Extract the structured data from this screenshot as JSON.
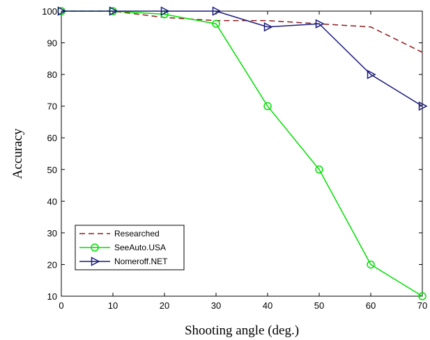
{
  "chart_data": {
    "type": "line",
    "xlabel": "Shooting angle (deg.)",
    "ylabel": "Accuracy",
    "xlim": [
      0,
      70
    ],
    "ylim": [
      10,
      100
    ],
    "x_ticks": [
      0,
      10,
      20,
      30,
      40,
      50,
      60,
      70
    ],
    "y_ticks": [
      10,
      20,
      30,
      40,
      50,
      60,
      70,
      80,
      90,
      100
    ],
    "grid": false,
    "legend_position": "bottom-left",
    "series": [
      {
        "name": "Researched",
        "color": "#8b1a1a",
        "line_style": "dashed",
        "marker": "none",
        "x": [
          0,
          10,
          20,
          30,
          40,
          50,
          60,
          70
        ],
        "y": [
          100,
          100,
          98,
          97,
          97,
          96,
          95,
          87
        ]
      },
      {
        "name": "SeeAuto.USA",
        "color": "#00e000",
        "line_style": "solid",
        "marker": "circle",
        "x": [
          0,
          10,
          20,
          30,
          40,
          50,
          60,
          70
        ],
        "y": [
          100,
          100,
          99,
          96,
          70,
          50,
          20,
          10
        ]
      },
      {
        "name": "Nomeroff.NET",
        "color": "#1a1a7a",
        "line_style": "solid",
        "marker": "triangle-right",
        "x": [
          0,
          10,
          20,
          30,
          40,
          50,
          60,
          70
        ],
        "y": [
          100,
          100,
          100,
          100,
          95,
          96,
          80,
          70
        ]
      }
    ]
  }
}
